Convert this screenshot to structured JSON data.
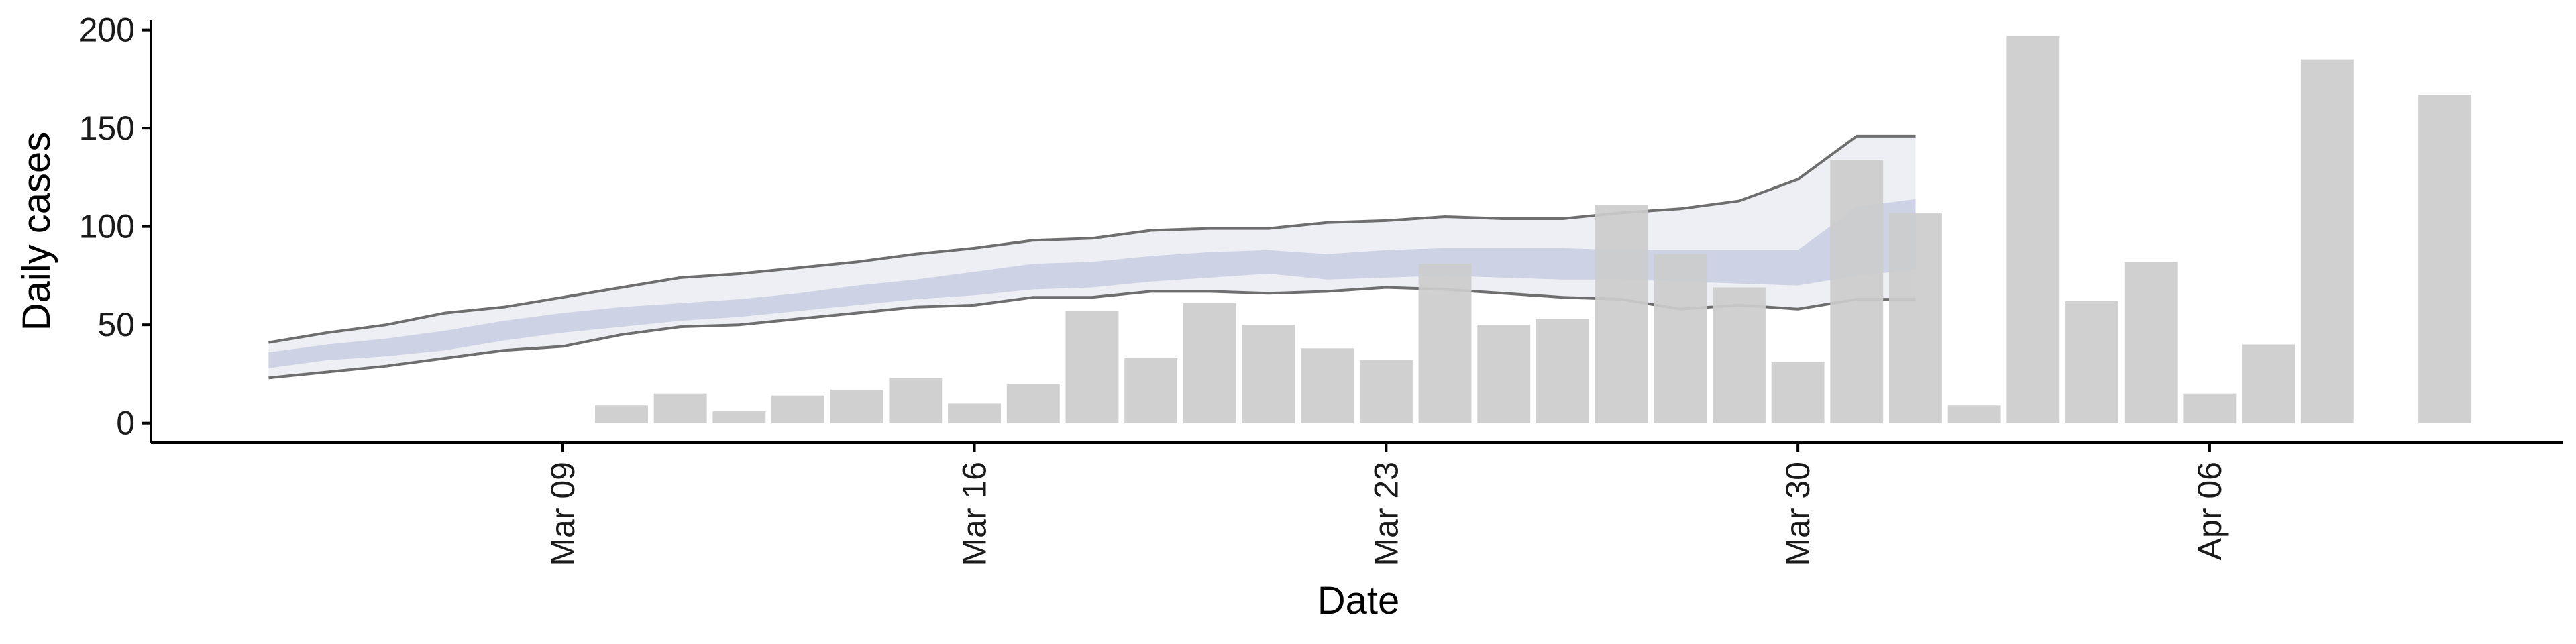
{
  "chart_data": {
    "type": "bar",
    "title": "",
    "xlabel": "Date",
    "ylabel": "Daily cases",
    "x_range": [
      "2020-03-02",
      "2020-04-12"
    ],
    "ylim": [
      -10,
      205
    ],
    "y_ticks": [
      0,
      50,
      100,
      150,
      200
    ],
    "x_ticks": [
      {
        "date": "2020-03-09",
        "label": "Mar 09"
      },
      {
        "date": "2020-03-16",
        "label": "Mar 16"
      },
      {
        "date": "2020-03-23",
        "label": "Mar 23"
      },
      {
        "date": "2020-03-30",
        "label": "Mar 30"
      },
      {
        "date": "2020-04-06",
        "label": "Apr 06"
      }
    ],
    "grid": false,
    "legend": "none",
    "colors": {
      "bars": "#cccccc",
      "band_outer": "#e8eaf2",
      "band_inner": "#c7cde0",
      "band_lines": "#6e6e6e",
      "axis": "#000000"
    },
    "bars": {
      "dates": [
        "2020-03-10",
        "2020-03-11",
        "2020-03-12",
        "2020-03-13",
        "2020-03-14",
        "2020-03-15",
        "2020-03-16",
        "2020-03-17",
        "2020-03-18",
        "2020-03-19",
        "2020-03-20",
        "2020-03-21",
        "2020-03-22",
        "2020-03-23",
        "2020-03-24",
        "2020-03-25",
        "2020-03-26",
        "2020-03-27",
        "2020-03-28",
        "2020-03-29",
        "2020-03-30",
        "2020-03-31",
        "2020-04-01",
        "2020-04-02",
        "2020-04-03",
        "2020-04-04",
        "2020-04-05",
        "2020-04-06",
        "2020-04-07",
        "2020-04-08",
        "2020-04-10"
      ],
      "values": [
        9,
        15,
        6,
        14,
        17,
        23,
        10,
        20,
        57,
        33,
        61,
        50,
        38,
        32,
        81,
        50,
        53,
        111,
        86,
        69,
        31,
        134,
        107,
        9,
        197,
        62,
        82,
        15,
        40,
        185,
        167
      ]
    },
    "estimate_band": {
      "dates": [
        "2020-03-04",
        "2020-03-05",
        "2020-03-06",
        "2020-03-07",
        "2020-03-08",
        "2020-03-09",
        "2020-03-10",
        "2020-03-11",
        "2020-03-12",
        "2020-03-13",
        "2020-03-14",
        "2020-03-15",
        "2020-03-16",
        "2020-03-17",
        "2020-03-18",
        "2020-03-19",
        "2020-03-20",
        "2020-03-21",
        "2020-03-22",
        "2020-03-23",
        "2020-03-24",
        "2020-03-25",
        "2020-03-26",
        "2020-03-27",
        "2020-03-28",
        "2020-03-29",
        "2020-03-30",
        "2020-03-31",
        "2020-04-01"
      ],
      "outer_upper": [
        41,
        46,
        50,
        56,
        59,
        64,
        69,
        74,
        76,
        79,
        82,
        86,
        89,
        93,
        94,
        98,
        99,
        99,
        102,
        103,
        105,
        104,
        104,
        107,
        109,
        113,
        124,
        146,
        146
      ],
      "outer_lower": [
        23,
        26,
        29,
        33,
        37,
        39,
        45,
        49,
        50,
        53,
        56,
        59,
        60,
        64,
        64,
        67,
        67,
        66,
        67,
        69,
        68,
        66,
        64,
        63,
        58,
        60,
        58,
        63,
        63
      ],
      "inner_upper": [
        36,
        40,
        43,
        47,
        52,
        56,
        59,
        61,
        63,
        66,
        70,
        73,
        77,
        81,
        82,
        85,
        87,
        88,
        86,
        88,
        89,
        89,
        89,
        88,
        88,
        88,
        88,
        110,
        114
      ],
      "inner_lower": [
        28,
        32,
        34,
        37,
        42,
        46,
        49,
        52,
        54,
        57,
        60,
        63,
        65,
        68,
        69,
        72,
        74,
        76,
        73,
        74,
        75,
        74,
        73,
        73,
        72,
        71,
        70,
        75,
        78
      ]
    }
  }
}
